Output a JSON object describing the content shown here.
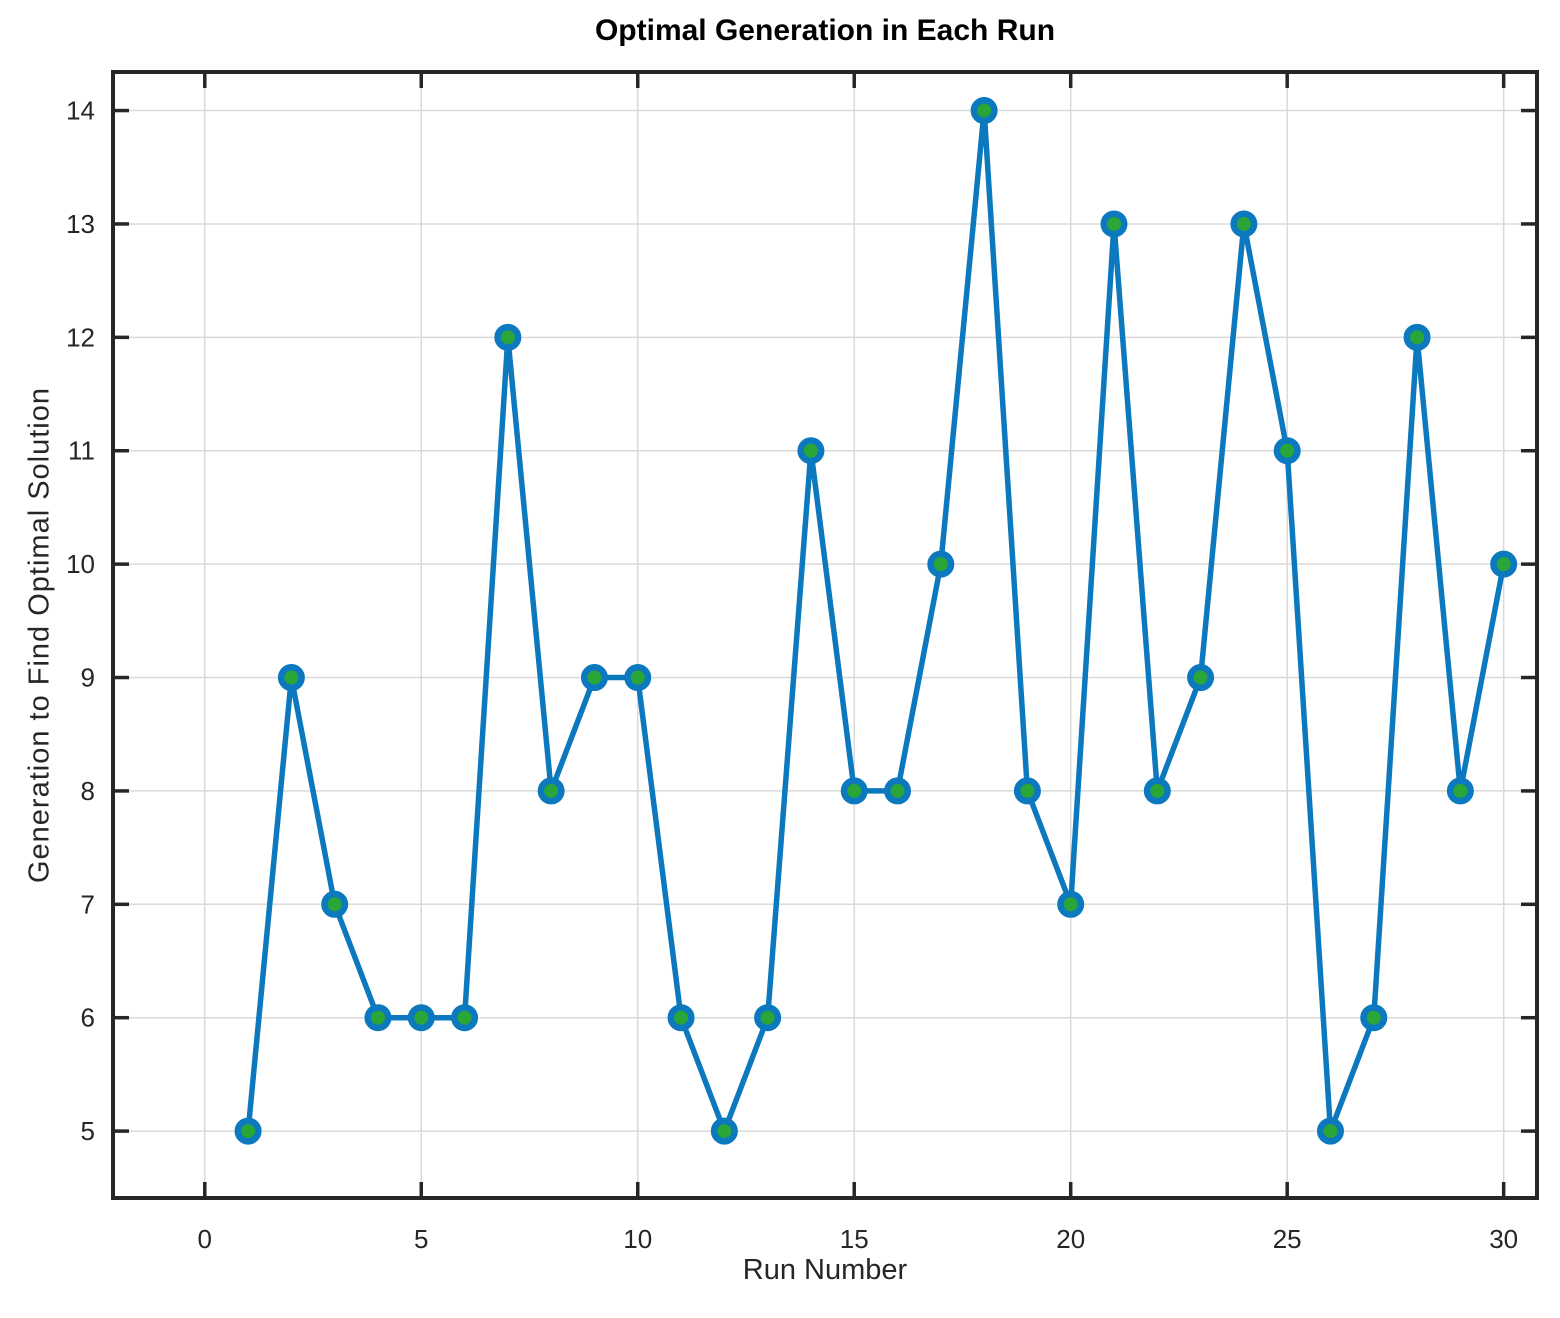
{
  "figure": {
    "title": "Optimal Generation in Each Run",
    "xlabel": "Run Number",
    "ylabel": "Generation to Find Optimal  Solution"
  },
  "chart_data": {
    "type": "line",
    "title": "Optimal Generation in Each Run",
    "xlabel": "Run Number",
    "ylabel": "Generation to Find Optimal Solution",
    "series": [
      {
        "name": "Generation to Find Optimal Solution",
        "x": [
          1,
          2,
          3,
          4,
          5,
          6,
          7,
          8,
          9,
          10,
          11,
          12,
          13,
          14,
          15,
          16,
          17,
          18,
          19,
          20,
          21,
          22,
          23,
          24,
          25,
          26,
          27,
          28,
          29,
          30
        ],
        "values": [
          5,
          9,
          7,
          6,
          6,
          6,
          12,
          8,
          9,
          9,
          6,
          5,
          6,
          11,
          8,
          8,
          10,
          14,
          8,
          7,
          13,
          8,
          9,
          13,
          11,
          5,
          6,
          12,
          8,
          10
        ]
      }
    ],
    "x_ticks": [
      0,
      5,
      10,
      15,
      20,
      25,
      30
    ],
    "y_ticks": [
      5,
      6,
      7,
      8,
      9,
      10,
      11,
      12,
      13,
      14
    ],
    "xlim": [
      -2.12,
      30.77
    ],
    "ylim": [
      4.41,
      14.34
    ],
    "grid": true,
    "legend_position": "none",
    "colors": {
      "line": "#0c78be",
      "marker_edge": "#0c78be",
      "marker_face": "#2aa638",
      "grid": "#dadada",
      "axis_box": "#262626",
      "tick_text": "#262626",
      "title_text": "#000000",
      "background": "#ffffff"
    }
  }
}
